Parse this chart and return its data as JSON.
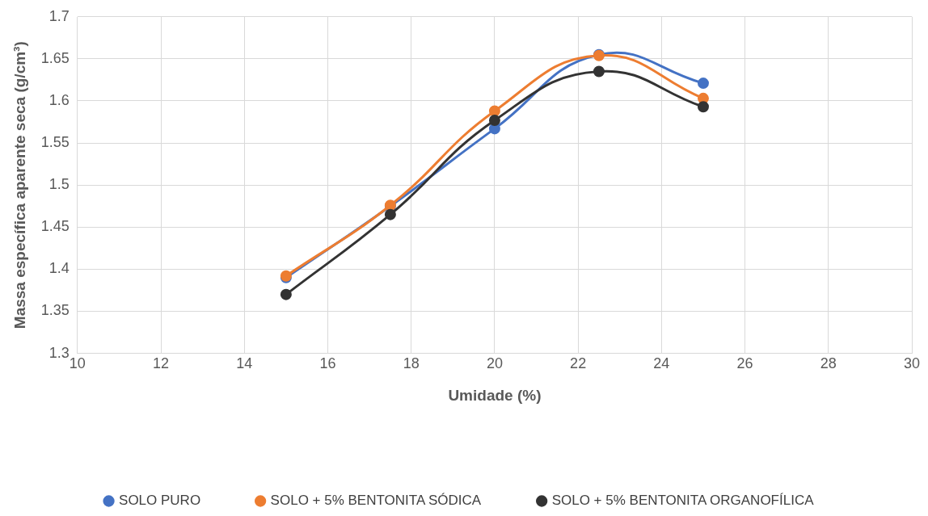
{
  "chart_data": {
    "type": "line",
    "xlabel": "Umidade (%)",
    "ylabel": "Massa específica aparente seca (g/cm³)",
    "x": [
      15,
      17.5,
      20,
      22.5,
      25
    ],
    "series": [
      {
        "name": "SOLO PURO",
        "color": "#4472c4",
        "values": [
          1.39,
          1.475,
          1.567,
          1.655,
          1.621
        ]
      },
      {
        "name": "SOLO + 5% BENTONITA SÓDICA",
        "color": "#ed7d31",
        "values": [
          1.392,
          1.476,
          1.588,
          1.654,
          1.603
        ]
      },
      {
        "name": "SOLO + 5% BENTONITA ORGANOFÍLICA",
        "color": "#333333",
        "values": [
          1.37,
          1.465,
          1.577,
          1.635,
          1.593
        ]
      }
    ],
    "xlim": [
      10,
      30
    ],
    "xticks": [
      10,
      12,
      14,
      16,
      18,
      20,
      22,
      24,
      26,
      28,
      30
    ],
    "ylim": [
      1.3,
      1.7
    ],
    "yticks": [
      1.3,
      1.35,
      1.4,
      1.45,
      1.5,
      1.55,
      1.6,
      1.65,
      1.7
    ],
    "grid": true,
    "legend": "bottom",
    "marker": "circle",
    "line_style": "solid"
  }
}
